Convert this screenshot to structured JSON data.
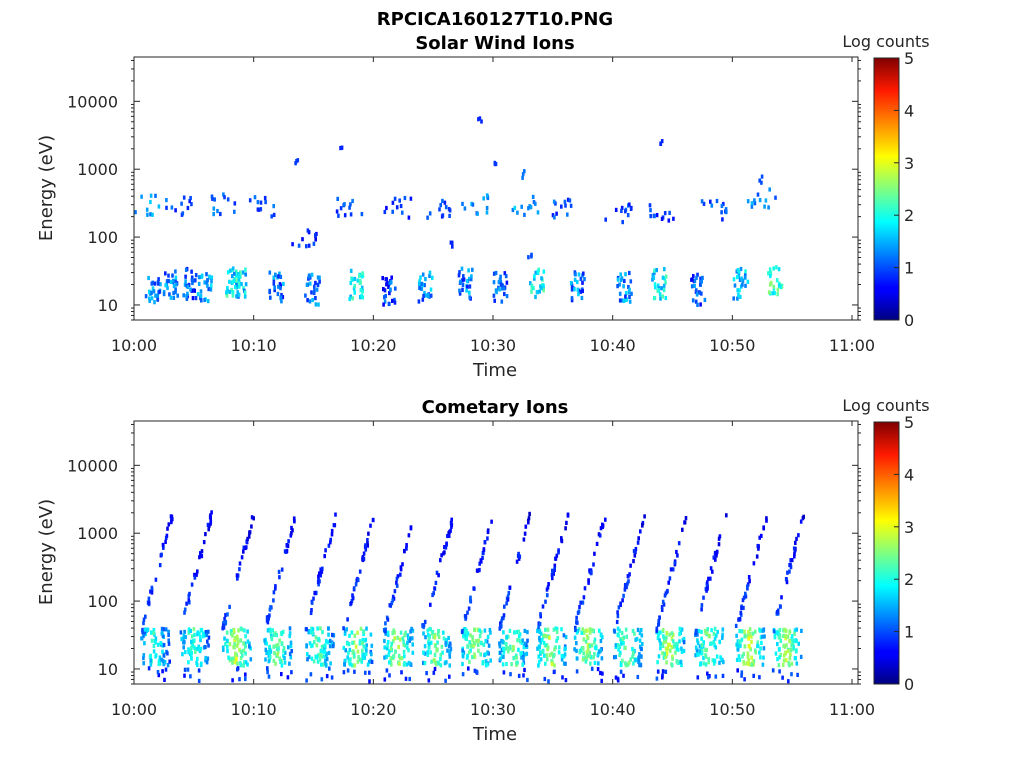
{
  "figure_title": "RPCICA160127T10.PNG",
  "chart_data": [
    {
      "type": "heatmap",
      "title": "Solar Wind Ions",
      "xlabel": "Time",
      "ylabel": "Energy (eV)",
      "x_ticks": [
        "10:00",
        "10:10",
        "10:20",
        "10:30",
        "10:40",
        "10:50",
        "11:00"
      ],
      "x_range_minutes": [
        0,
        60.5
      ],
      "y_scale": "log",
      "y_range": [
        6,
        45000
      ],
      "y_ticks": [
        {
          "value": 10,
          "label": "10"
        },
        {
          "value": 100,
          "label": "100"
        },
        {
          "value": 1000,
          "label": "1000"
        },
        {
          "value": 10000,
          "label": "10000"
        }
      ],
      "colorbar": {
        "label": "Log counts",
        "range": [
          0,
          5
        ],
        "ticks": [
          "0",
          "1",
          "2",
          "3",
          "4",
          "5"
        ],
        "colormap": "jet"
      },
      "band_lower": [
        {
          "t": 1.5,
          "e": 18,
          "c": 1.3
        },
        {
          "t": 3.0,
          "e": 20,
          "c": 1.2
        },
        {
          "t": 4.5,
          "e": 22,
          "c": 1.0
        },
        {
          "t": 5.8,
          "e": 20,
          "c": 1.4
        },
        {
          "t": 8.2,
          "e": 24,
          "c": 2.0
        },
        {
          "t": 8.7,
          "e": 22,
          "c": 1.6
        },
        {
          "t": 11.8,
          "e": 20,
          "c": 1.2
        },
        {
          "t": 14.8,
          "e": 18,
          "c": 1.1
        },
        {
          "t": 18.5,
          "e": 22,
          "c": 1.8
        },
        {
          "t": 21.2,
          "e": 18,
          "c": 1.0
        },
        {
          "t": 24.3,
          "e": 20,
          "c": 1.3
        },
        {
          "t": 27.6,
          "e": 22,
          "c": 1.2
        },
        {
          "t": 30.5,
          "e": 20,
          "c": 1.1
        },
        {
          "t": 33.6,
          "e": 22,
          "c": 1.9
        },
        {
          "t": 37.0,
          "e": 20,
          "c": 1.2
        },
        {
          "t": 40.9,
          "e": 20,
          "c": 1.3
        },
        {
          "t": 43.8,
          "e": 22,
          "c": 1.8
        },
        {
          "t": 47.0,
          "e": 18,
          "c": 1.0
        },
        {
          "t": 50.6,
          "e": 22,
          "c": 1.5
        },
        {
          "t": 53.5,
          "e": 24,
          "c": 2.2
        }
      ],
      "band_upper": [
        {
          "t": 0.8,
          "e": 320,
          "c": 1.4
        },
        {
          "t": 3.5,
          "e": 300,
          "c": 1.0
        },
        {
          "t": 7.5,
          "e": 330,
          "c": 1.1
        },
        {
          "t": 10.5,
          "e": 300,
          "c": 1.0
        },
        {
          "t": 14.0,
          "e": 110,
          "c": 0.8
        },
        {
          "t": 18.0,
          "e": 280,
          "c": 1.0
        },
        {
          "t": 22.0,
          "e": 290,
          "c": 0.9
        },
        {
          "t": 25.5,
          "e": 270,
          "c": 0.9
        },
        {
          "t": 28.5,
          "e": 330,
          "c": 1.3
        },
        {
          "t": 32.5,
          "e": 300,
          "c": 1.4
        },
        {
          "t": 36.0,
          "e": 280,
          "c": 1.0
        },
        {
          "t": 40.5,
          "e": 250,
          "c": 0.9
        },
        {
          "t": 44.0,
          "e": 260,
          "c": 0.9
        },
        {
          "t": 48.5,
          "e": 260,
          "c": 1.0
        },
        {
          "t": 52.3,
          "e": 400,
          "c": 1.3
        }
      ],
      "bursts": [
        {
          "t": 13.5,
          "e": 1300,
          "c": 0.9
        },
        {
          "t": 17.2,
          "e": 2100,
          "c": 0.8
        },
        {
          "t": 28.8,
          "e": 5800,
          "c": 0.8
        },
        {
          "t": 30.0,
          "e": 1200,
          "c": 0.9
        },
        {
          "t": 32.5,
          "e": 900,
          "c": 1.2
        },
        {
          "t": 44.0,
          "e": 2700,
          "c": 0.8
        },
        {
          "t": 52.3,
          "e": 760,
          "c": 1.0
        },
        {
          "t": 26.5,
          "e": 80,
          "c": 0.8
        },
        {
          "t": 33.0,
          "e": 60,
          "c": 1.0
        }
      ]
    },
    {
      "type": "heatmap",
      "title": "Cometary Ions",
      "xlabel": "Time",
      "ylabel": "Energy (eV)",
      "x_ticks": [
        "10:00",
        "10:10",
        "10:20",
        "10:30",
        "10:40",
        "10:50",
        "11:00"
      ],
      "x_range_minutes": [
        0,
        60.5
      ],
      "y_scale": "log",
      "y_range": [
        6,
        45000
      ],
      "y_ticks": [
        {
          "value": 10,
          "label": "10"
        },
        {
          "value": 100,
          "label": "100"
        },
        {
          "value": 1000,
          "label": "1000"
        },
        {
          "value": 10000,
          "label": "10000"
        }
      ],
      "colorbar": {
        "label": "Log counts",
        "range": [
          0,
          5
        ],
        "ticks": [
          "0",
          "1",
          "2",
          "3",
          "4",
          "5"
        ],
        "colormap": "jet"
      },
      "cycles": [
        {
          "t": 0.5,
          "peak": 2.0
        },
        {
          "t": 3.8,
          "peak": 2.2
        },
        {
          "t": 7.3,
          "peak": 2.8
        },
        {
          "t": 10.8,
          "peak": 2.4
        },
        {
          "t": 14.2,
          "peak": 2.3
        },
        {
          "t": 17.4,
          "peak": 2.6
        },
        {
          "t": 20.8,
          "peak": 2.7
        },
        {
          "t": 24.0,
          "peak": 2.5
        },
        {
          "t": 27.3,
          "peak": 2.6
        },
        {
          "t": 30.4,
          "peak": 2.5
        },
        {
          "t": 33.6,
          "peak": 2.7
        },
        {
          "t": 36.7,
          "peak": 2.6
        },
        {
          "t": 40.0,
          "peak": 2.5
        },
        {
          "t": 43.5,
          "peak": 2.8
        },
        {
          "t": 46.8,
          "peak": 2.5
        },
        {
          "t": 50.2,
          "peak": 2.8
        },
        {
          "t": 53.3,
          "peak": 2.7
        }
      ]
    }
  ]
}
